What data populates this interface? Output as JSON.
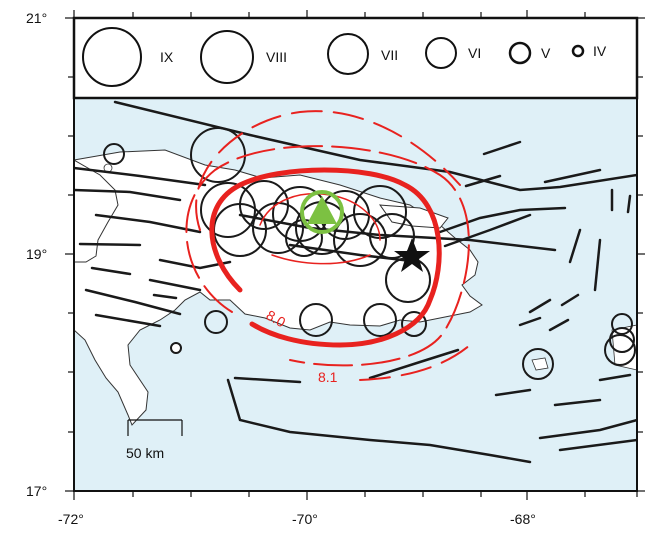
{
  "map": {
    "axes": {
      "x_ticks": [
        "-72°",
        "-70°",
        "-68°"
      ],
      "y_ticks": [
        "21°",
        "19°",
        "17°"
      ]
    },
    "legend": {
      "items": [
        {
          "label": "IX"
        },
        {
          "label": "VIII"
        },
        {
          "label": "VII"
        },
        {
          "label": "VI"
        },
        {
          "label": "V"
        },
        {
          "label": "IV"
        }
      ]
    },
    "contours": [
      {
        "label": "8.0"
      },
      {
        "label": "8.1"
      }
    ],
    "scale_bar": {
      "label": "50 km"
    },
    "colors": {
      "sea": "#dff0f7",
      "land": "#ffffff",
      "fault": "#1a1a1a",
      "contour": "#e8221f",
      "epicenter_triangle": "#7cc142",
      "intensity_circle": "#1a1a1a"
    }
  }
}
